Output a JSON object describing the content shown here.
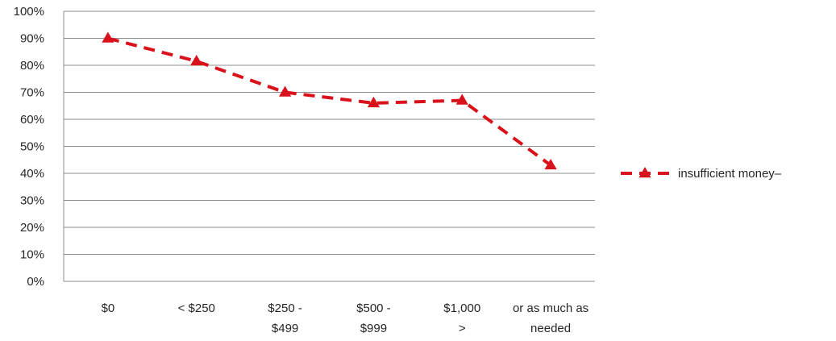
{
  "chart_data": {
    "type": "line",
    "categories": [
      [
        "$0"
      ],
      [
        "< $250"
      ],
      [
        "$250  -",
        "$499"
      ],
      [
        "$500 -",
        "$999"
      ],
      [
        "$1,000",
        ">"
      ],
      [
        "or as much as",
        "needed"
      ]
    ],
    "series": [
      {
        "name": "insufficient money–",
        "values": [
          0.9,
          0.815,
          0.7,
          0.66,
          0.67,
          0.43
        ],
        "color": "#d9111a",
        "line_style": "dashed",
        "marker": "triangle"
      }
    ],
    "y_ticks": [
      "0%",
      "10%",
      "20%",
      "30%",
      "40%",
      "50%",
      "60%",
      "70%",
      "80%",
      "90%",
      "100%"
    ],
    "ylim": [
      0,
      1
    ],
    "grid": true,
    "legend_position": "right"
  }
}
